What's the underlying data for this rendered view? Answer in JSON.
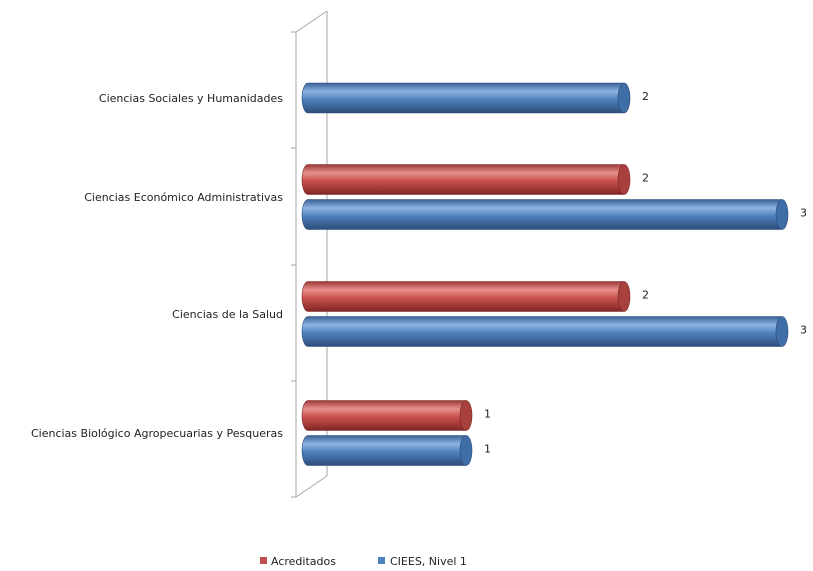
{
  "chart_data": {
    "type": "bar",
    "orientation": "horizontal",
    "style": "3d-cylinder",
    "categories": [
      "Ciencias Sociales y Humanidades",
      "Ciencias Económico  Administrativas",
      "Ciencias de la Salud",
      "Ciencias Biológico  Agropecuarias y Pesqueras"
    ],
    "series": [
      {
        "name": "Acreditados",
        "color": "#C0504D",
        "values": [
          null,
          2,
          2,
          1
        ]
      },
      {
        "name": "CIEES, Nivel 1",
        "color": "#4F81BD",
        "values": [
          2,
          3,
          3,
          1
        ]
      }
    ],
    "xlim": [
      0,
      3
    ],
    "title": "",
    "xlabel": "",
    "ylabel": "",
    "grid": false,
    "legend_position": "bottom-center"
  }
}
